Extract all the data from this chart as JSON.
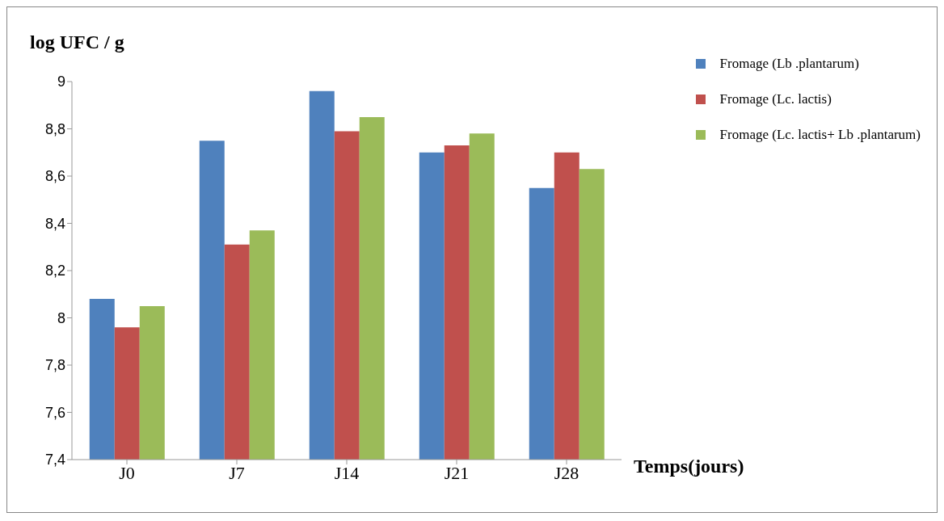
{
  "chart_data": {
    "type": "bar",
    "ylabel": "log UFC / g",
    "xlabel": "Temps(jours)",
    "categories": [
      "J0",
      "J7",
      "J14",
      "J21",
      "J28"
    ],
    "series": [
      {
        "name": "Fromage (Lb .plantarum)",
        "color": "#4f81bd",
        "values": [
          8.08,
          8.75,
          8.96,
          8.7,
          8.55
        ]
      },
      {
        "name": "Fromage (Lc. lactis)",
        "color": "#c0504d",
        "values": [
          7.96,
          8.31,
          8.79,
          8.73,
          8.7
        ]
      },
      {
        "name": "Fromage (Lc. lactis+ Lb .plantarum)",
        "color": "#9bbb59",
        "values": [
          8.05,
          8.37,
          8.85,
          8.78,
          8.63
        ]
      }
    ],
    "ylim": [
      7.4,
      9
    ],
    "yticks": [
      {
        "value": 7.4,
        "label": "7,4"
      },
      {
        "value": 7.6,
        "label": "7,6"
      },
      {
        "value": 7.8,
        "label": "7,8"
      },
      {
        "value": 8,
        "label": "8"
      },
      {
        "value": 8.2,
        "label": "8,2"
      },
      {
        "value": 8.4,
        "label": "8,4"
      },
      {
        "value": 8.6,
        "label": "8,6"
      },
      {
        "value": 8.8,
        "label": "8,8"
      },
      {
        "value": 9,
        "label": "9"
      }
    ],
    "grid": false,
    "legend": "top right"
  }
}
